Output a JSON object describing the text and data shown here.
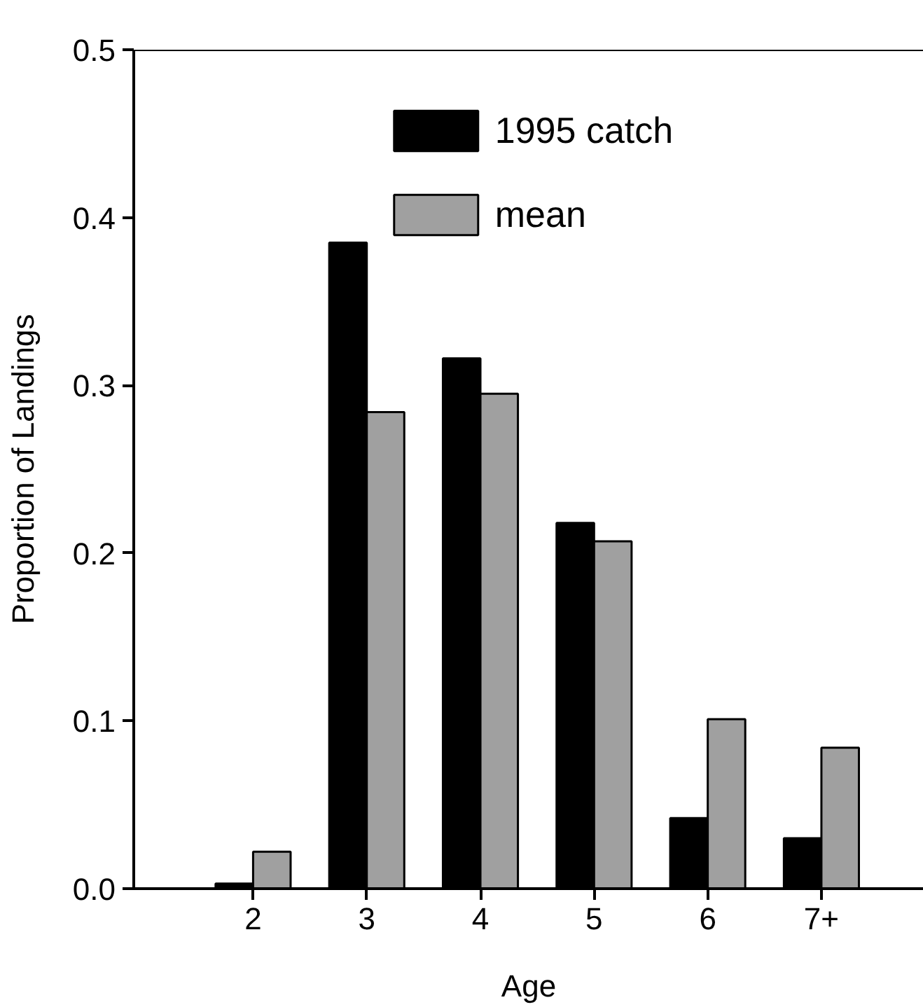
{
  "chart_data": {
    "type": "bar",
    "xlabel": "Age",
    "ylabel": "Proportion of Landings",
    "categories": [
      "2",
      "3",
      "4",
      "5",
      "6",
      "7+"
    ],
    "series": [
      {
        "name": "1995 catch",
        "color": "#000000",
        "values": [
          0.003,
          0.385,
          0.316,
          0.218,
          0.042,
          0.03
        ]
      },
      {
        "name": "mean",
        "color": "#a0a0a0",
        "values": [
          0.022,
          0.284,
          0.295,
          0.207,
          0.101,
          0.084
        ]
      }
    ],
    "ylim": [
      0,
      0.5
    ],
    "yticks": [
      {
        "value": 0,
        "label": "0.0"
      },
      0.1,
      0.2,
      0.3,
      0.4,
      0.5
    ],
    "grid": false,
    "legend": "top"
  }
}
